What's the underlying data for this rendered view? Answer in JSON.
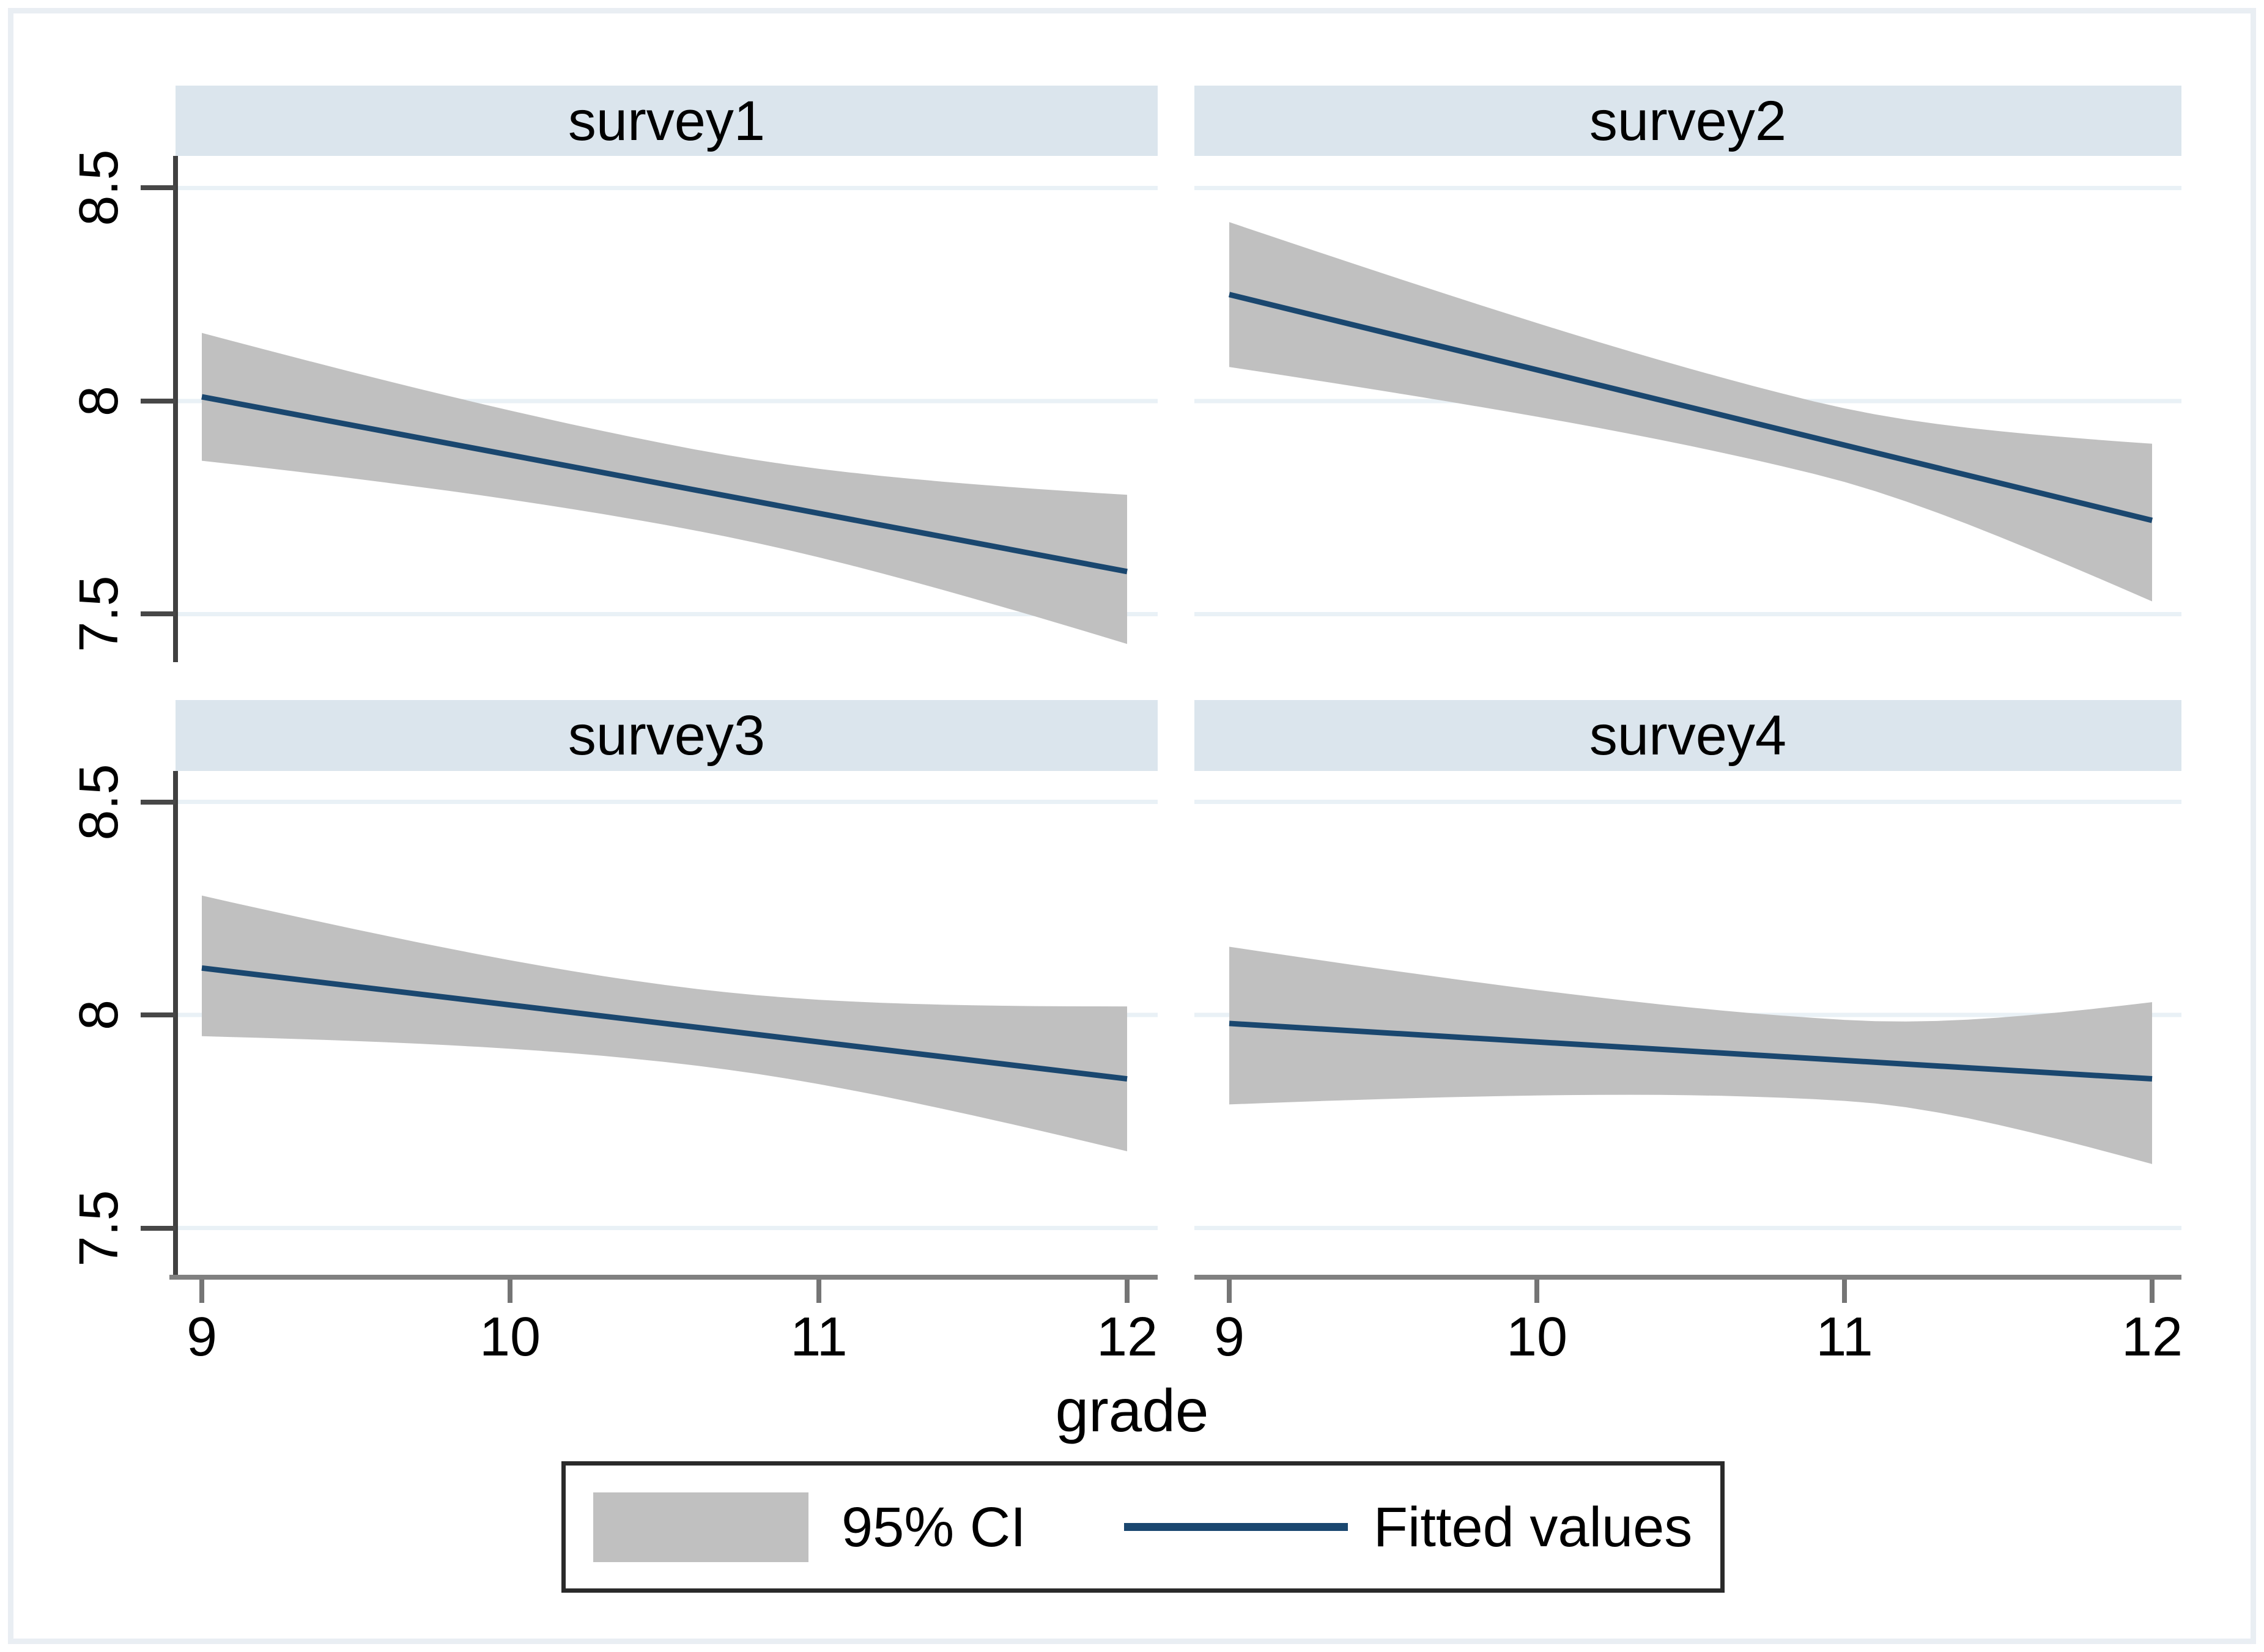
{
  "figure": {
    "xlabel": "grade",
    "legend": {
      "ci_label": "95% CI",
      "line_label": "Fitted values"
    }
  },
  "axes": {
    "x_ticklabels": [
      "9",
      "10",
      "11",
      "12"
    ],
    "y_ticklabels": [
      "8.5",
      "8",
      "7.5"
    ]
  },
  "colors": {
    "fitted_line": "#1a476f",
    "ci_band": "#c0c0c0",
    "panel_header_bg": "#dbe5ed",
    "gridline": "#e9f1f6",
    "y_axis": "#404040",
    "x_axis": "#808080",
    "figure_frame": "#e9eef3"
  },
  "chart_data": {
    "type": "line",
    "layout": "2x2 small multiples (by-panel regression fit with confidence band)",
    "title": "",
    "xlabel": "grade",
    "ylabel": "",
    "x_ticks": [
      9,
      10,
      11,
      12
    ],
    "y_ticks": [
      8.5,
      8,
      7.5
    ],
    "x_range": [
      9,
      12
    ],
    "y_range": [
      7.39,
      8.58
    ],
    "grid": "horizontal gridlines at y ticks",
    "legend_entries": [
      "95% CI",
      "Fitted values"
    ],
    "legend_position": "bottom center, boxed",
    "panels": [
      {
        "title": "survey1",
        "fitted": {
          "x": [
            9,
            12
          ],
          "y": [
            8.01,
            7.6
          ]
        },
        "ci_at_x9": [
          7.86,
          8.16
        ],
        "ci_at_x12": [
          7.43,
          7.78
        ],
        "ci_narrowest": {
          "x": 10.6,
          "half_width": 0.095
        }
      },
      {
        "title": "survey2",
        "fitted": {
          "x": [
            9,
            12
          ],
          "y": [
            8.25,
            7.72
          ]
        },
        "ci_at_x9": [
          8.08,
          8.42
        ],
        "ci_at_x12": [
          7.53,
          7.9
        ],
        "ci_narrowest": {
          "x": 10.9,
          "half_width": 0.085
        }
      },
      {
        "title": "survey3",
        "fitted": {
          "x": [
            9,
            12
          ],
          "y": [
            8.11,
            7.85
          ]
        },
        "ci_at_x9": [
          7.95,
          8.28
        ],
        "ci_at_x12": [
          7.68,
          8.02
        ],
        "ci_narrowest": {
          "x": 10.6,
          "half_width": 0.09
        }
      },
      {
        "title": "survey4",
        "fitted": {
          "x": [
            9,
            12
          ],
          "y": [
            7.98,
            7.85
          ]
        },
        "ci_at_x9": [
          7.79,
          8.16
        ],
        "ci_at_x12": [
          7.65,
          8.03
        ],
        "ci_narrowest": {
          "x": 11.0,
          "half_width": 0.095
        }
      }
    ]
  }
}
